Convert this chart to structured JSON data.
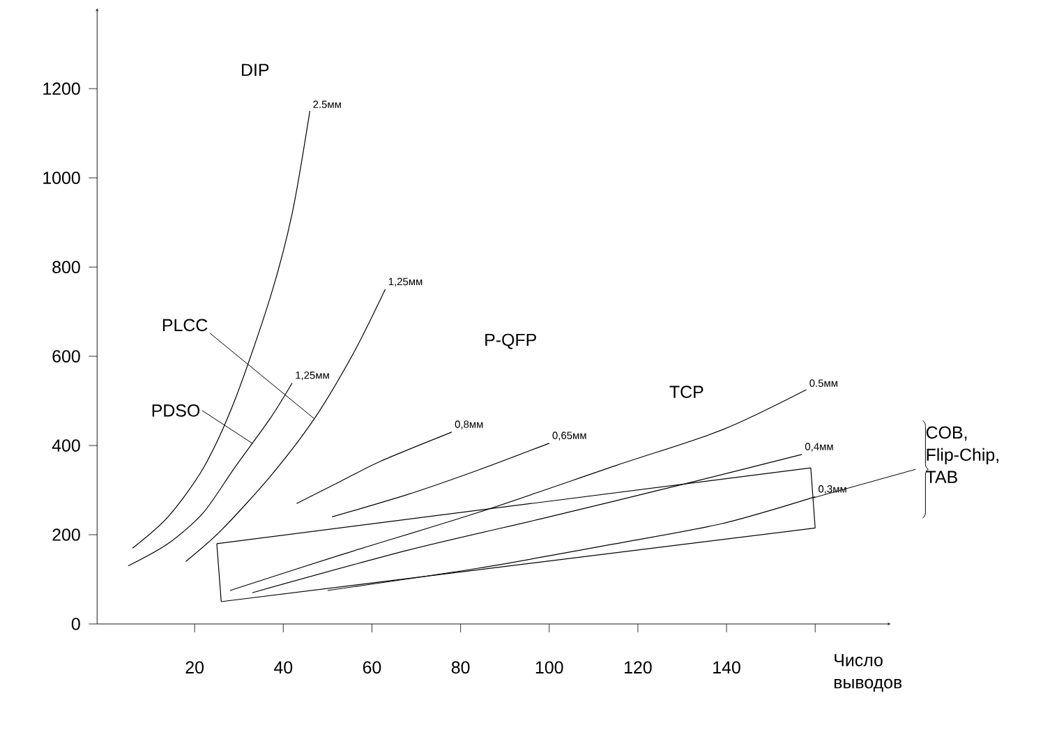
{
  "chart_data": {
    "type": "line",
    "xlabel": "Число выводов",
    "xlim": [
      -2,
      177
    ],
    "ylim": [
      0,
      1380
    ],
    "xticks": [
      20,
      40,
      60,
      80,
      100,
      120,
      140,
      {
        "value": 160,
        "label": null
      }
    ],
    "yticks": [
      0,
      200,
      400,
      600,
      800,
      1000,
      1200
    ],
    "series": [
      {
        "name": "2.5мм",
        "color": "#000000",
        "x": [
          6,
          14,
          22,
          29,
          37,
          42,
          46
        ],
        "values": [
          170,
          240,
          350,
          500,
          730,
          920,
          1150
        ]
      },
      {
        "name": "1,25мм",
        "color": "#000000",
        "x": [
          5,
          14,
          22,
          29,
          37,
          42
        ],
        "values": [
          130,
          180,
          250,
          350,
          460,
          540
        ]
      },
      {
        "name": "1,25мм",
        "color": "#000000",
        "x": [
          18,
          26,
          37,
          47,
          56,
          63
        ],
        "values": [
          140,
          210,
          330,
          460,
          610,
          750
        ]
      },
      {
        "name": "0,8мм",
        "color": "#000000",
        "x": [
          43,
          53,
          62,
          78
        ],
        "values": [
          270,
          320,
          365,
          430
        ]
      },
      {
        "name": "0,65мм",
        "color": "#000000",
        "x": [
          51,
          68,
          84,
          100
        ],
        "values": [
          240,
          290,
          345,
          405
        ]
      },
      {
        "name": "0.5мм",
        "color": "#000000",
        "x": [
          28,
          53,
          84,
          115,
          139,
          158
        ],
        "values": [
          75,
          155,
          250,
          355,
          435,
          525
        ]
      },
      {
        "name": "0,4мм",
        "color": "#000000",
        "x": [
          33,
          68,
          100,
          131,
          157
        ],
        "values": [
          70,
          165,
          240,
          315,
          380
        ]
      },
      {
        "name": "0,3мм",
        "color": "#000000",
        "x": [
          50,
          84,
          115,
          139,
          160
        ],
        "values": [
          75,
          125,
          180,
          225,
          285
        ]
      },
      {
        "color": "#000000",
        "x": [
          25,
          159
        ],
        "values": [
          180,
          350
        ]
      },
      {
        "color": "#000000",
        "x": [
          159,
          160
        ],
        "values": [
          350,
          215
        ]
      },
      {
        "color": "#000000",
        "x": [
          26,
          160
        ],
        "values": [
          50,
          215
        ]
      },
      {
        "color": "#000000",
        "x": [
          25,
          26
        ],
        "values": [
          180,
          50
        ]
      }
    ],
    "annotations": [
      "DIP",
      {
        "text": "PLCC",
        "x": 47,
        "y": 460
      },
      {
        "text": "PDSO",
        "x": 33,
        "y": 405
      },
      "P-QFP",
      "TCP",
      {
        "text": "COB, Flip-Chip, TAB",
        "x": 159.5,
        "y": 282.5
      }
    ]
  }
}
